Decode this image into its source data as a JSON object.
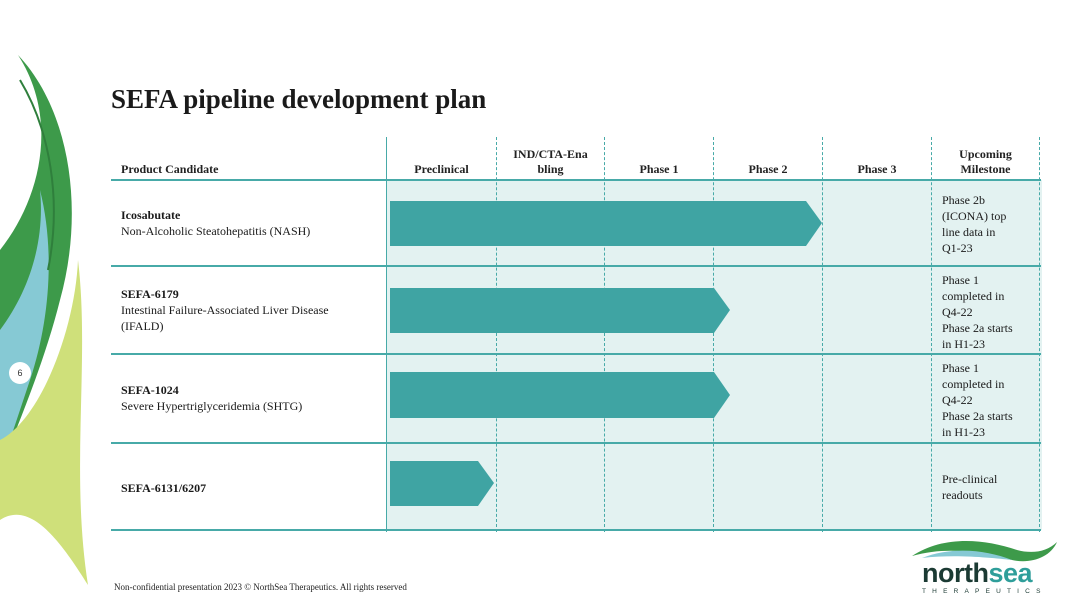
{
  "title": "SEFA pipeline development plan",
  "page_number": "6",
  "table": {
    "headers": {
      "candidate": "Product Candidate",
      "preclinical": "Preclinical",
      "ind_line1": "IND/CTA-Ena",
      "ind_line2": "bling",
      "phase1": "Phase 1",
      "phase2": "Phase 2",
      "phase3": "Phase 3",
      "milestone_line1": "Upcoming",
      "milestone_line2": "Milestone"
    },
    "rows": [
      {
        "name": "Icosabutate",
        "description": "Non-Alcoholic Steatohepatitis (NASH)",
        "progress_stage": "Phase 2",
        "milestone": [
          "Phase 2b",
          "(ICONA) top",
          "line data in",
          "Q1-23"
        ]
      },
      {
        "name": "SEFA-6179",
        "description": "Intestinal Failure-Associated Liver Disease (IFALD)",
        "progress_stage": "Phase 1",
        "milestone": [
          "Phase 1",
          "completed in",
          "Q4-22",
          "Phase 2a starts",
          "in H1-23"
        ]
      },
      {
        "name": "SEFA-1024",
        "description": "Severe Hypertriglyceridemia (SHTG)",
        "progress_stage": "Phase 1",
        "milestone": [
          "Phase 1",
          "completed in",
          "Q4-22",
          "Phase 2a starts",
          "in H1-23"
        ]
      },
      {
        "name": "SEFA-6131/6207",
        "description": "",
        "progress_stage": "Preclinical",
        "milestone": [
          "Pre-clinical",
          "readouts"
        ]
      }
    ]
  },
  "footer": "Non-confidential presentation 2023 © NorthSea Therapeutics. All rights reserved",
  "logo": {
    "word_north": "north",
    "word_sea": "sea",
    "tagline": "THERAPEUTICS"
  },
  "colors": {
    "teal": "#47aaa8",
    "bar": "#3fa4a3",
    "shade": "#e3f2f1",
    "leaf_green": "#3d9a4a",
    "leaf_lime": "#cfe07a"
  }
}
